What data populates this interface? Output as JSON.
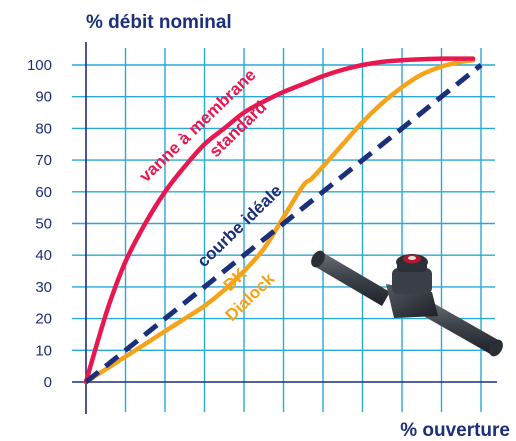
{
  "chart_data": {
    "type": "line",
    "ylabel": "% débit nominal",
    "xlabel": "% ouverture",
    "xlim": [
      0,
      100
    ],
    "ylim": [
      0,
      100
    ],
    "yticks": [
      0,
      10,
      20,
      30,
      40,
      50,
      60,
      70,
      80,
      90,
      100
    ],
    "grid": true,
    "series": [
      {
        "name": "vanne à membrane standard",
        "label_lines": [
          "vanne à membrane",
          "standard"
        ],
        "color": "#e8174f",
        "style": "solid",
        "x": [
          0,
          3,
          6,
          10,
          15,
          20,
          25,
          30,
          35,
          40,
          45,
          50,
          55,
          60,
          65,
          70,
          75,
          80,
          85,
          90,
          95,
          98
        ],
        "y": [
          0,
          13,
          25,
          38,
          50,
          60,
          68,
          75,
          80,
          85,
          88.5,
          91.5,
          94,
          96.5,
          98.5,
          100,
          101,
          101.5,
          101.8,
          102,
          102,
          102
        ]
      },
      {
        "name": "courbe idéale",
        "color": "#1c2f7a",
        "style": "dashed",
        "x": [
          0,
          100
        ],
        "y": [
          0,
          100
        ]
      },
      {
        "name": "DK Dialock",
        "label_lines": [
          "DK",
          "Dialock"
        ],
        "color": "#f5a31a",
        "style": "solid",
        "x": [
          0,
          5,
          10,
          15,
          20,
          25,
          30,
          35,
          40,
          45,
          50,
          55,
          57,
          60,
          65,
          70,
          75,
          80,
          85,
          90,
          95,
          98
        ],
        "y": [
          0,
          4,
          8,
          12,
          16,
          20,
          24,
          29,
          35,
          42,
          52,
          62,
          64,
          68,
          75,
          82,
          88,
          93,
          97,
          99.5,
          101,
          101.5
        ]
      }
    ]
  },
  "colors": {
    "axis_text": "#1c2f7a",
    "grid": "#29a9d6",
    "axis": "#1c2f7a"
  },
  "image": {
    "name": "valve-icon"
  }
}
